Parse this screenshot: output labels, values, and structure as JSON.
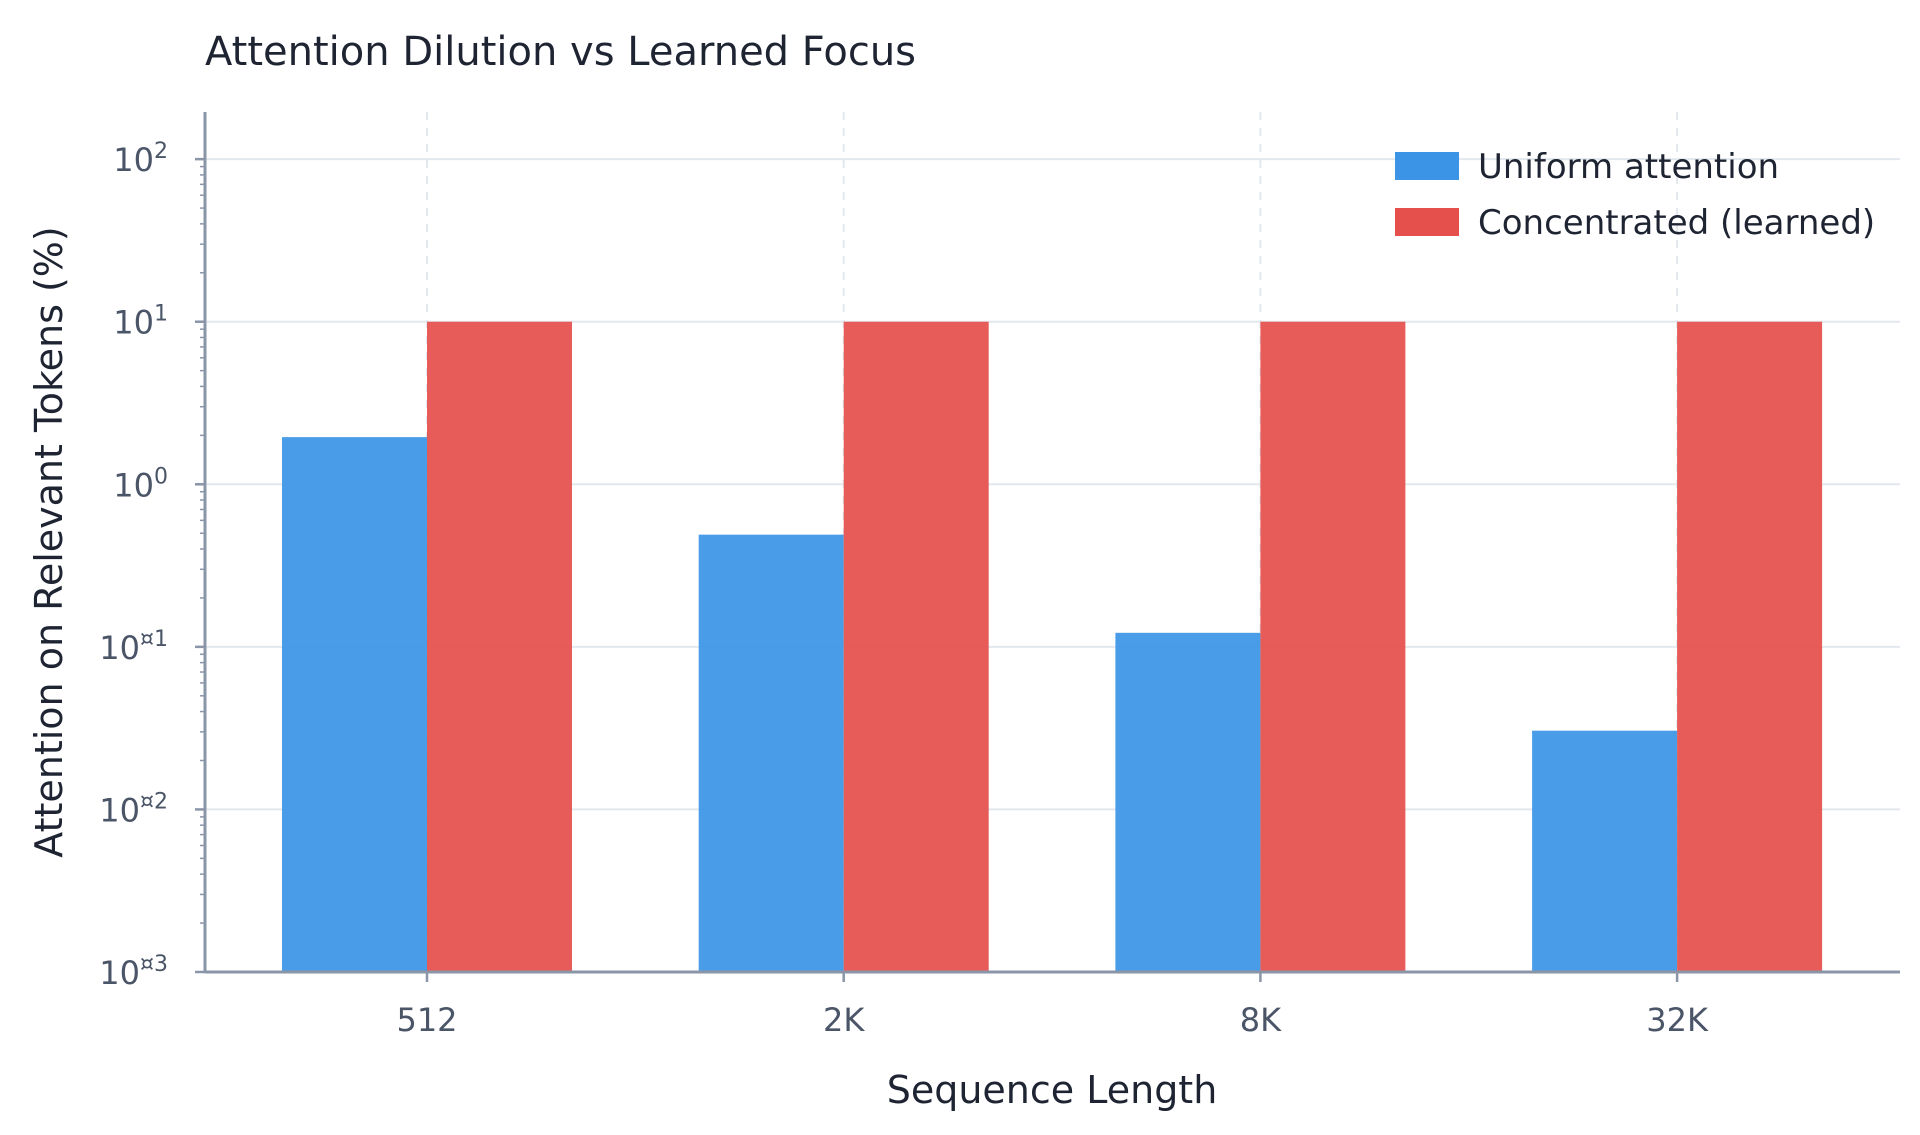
{
  "chart_data": {
    "type": "bar",
    "title": "Attention Dilution vs Learned Focus",
    "xlabel": "Sequence Length",
    "ylabel": "Attention on Relevant Tokens (%)",
    "categories": [
      "512",
      "2K",
      "8K",
      "32K"
    ],
    "y_scale": "log",
    "ylim": [
      0.001,
      100
    ],
    "yticks": [
      {
        "value": 100,
        "base": "10",
        "exp": "2"
      },
      {
        "value": 10,
        "base": "10",
        "exp": "1"
      },
      {
        "value": 1,
        "base": "10",
        "exp": "0"
      },
      {
        "value": 0.1,
        "base": "10",
        "exp": "¤1"
      },
      {
        "value": 0.01,
        "base": "10",
        "exp": "¤2"
      },
      {
        "value": 0.001,
        "base": "10",
        "exp": "¤3"
      }
    ],
    "series": [
      {
        "name": "Uniform attention",
        "color": "#3b94e6",
        "values": [
          1.95,
          0.49,
          0.122,
          0.0305
        ]
      },
      {
        "name": "Concentrated (learned)",
        "color": "#e5504c",
        "values": [
          10,
          10,
          10,
          10
        ]
      }
    ],
    "grid": true,
    "legend_position": "top-right"
  }
}
